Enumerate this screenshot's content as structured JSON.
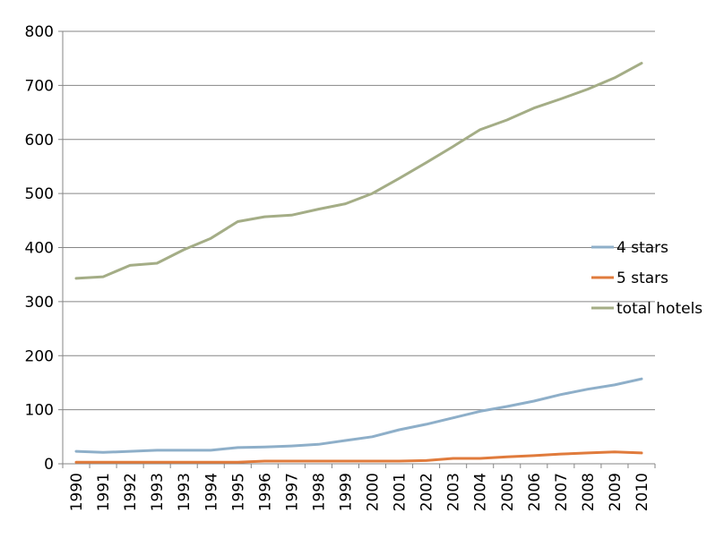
{
  "chart_data": {
    "type": "line",
    "title": "",
    "xlabel": "",
    "ylabel": "",
    "ylim": [
      0,
      800
    ],
    "yticks": [
      0,
      100,
      200,
      300,
      400,
      500,
      600,
      700,
      800
    ],
    "grid": true,
    "legend_position": "right",
    "categories": [
      "1990",
      "1991",
      "1992",
      "1993",
      "1993",
      "1994",
      "1995",
      "1996",
      "1997",
      "1998",
      "1999",
      "2000",
      "2001",
      "2002",
      "2003",
      "2004",
      "2005",
      "2006",
      "2007",
      "2008",
      "2009",
      "2010"
    ],
    "series": [
      {
        "name": "4 stars",
        "color": "#8eafc9",
        "values": [
          23,
          21,
          23,
          25,
          25,
          25,
          30,
          31,
          33,
          36,
          43,
          50,
          63,
          73,
          85,
          97,
          106,
          116,
          128,
          138,
          146,
          157
        ]
      },
      {
        "name": "5 stars",
        "color": "#e07b3c",
        "values": [
          3,
          3,
          3,
          3,
          3,
          3,
          3,
          5,
          5,
          5,
          5,
          5,
          5,
          6,
          10,
          10,
          13,
          15,
          18,
          20,
          22,
          20
        ]
      },
      {
        "name": "total hotels",
        "color": "#a4ad86",
        "values": [
          343,
          346,
          367,
          371,
          396,
          417,
          448,
          457,
          460,
          471,
          481,
          500,
          528,
          557,
          587,
          618,
          636,
          658,
          675,
          693,
          714,
          741
        ]
      }
    ]
  }
}
